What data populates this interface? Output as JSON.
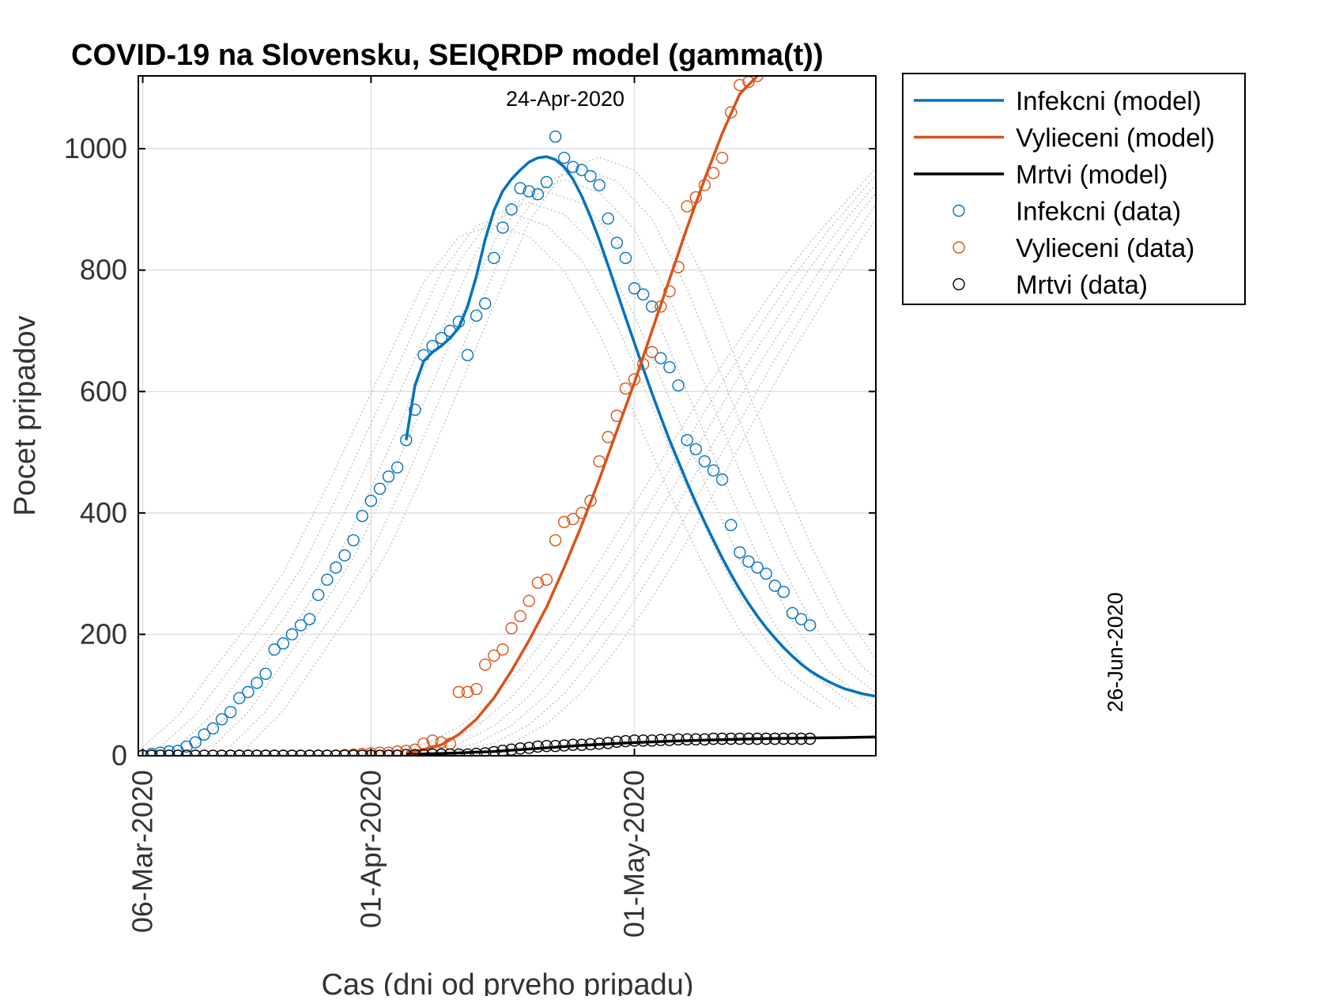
{
  "chart_data": {
    "type": "line",
    "title": "COVID-19 na Slovensku, SEIQRDP model (gamma(t))",
    "xlabel": "Cas (dni od prveho pripadu)",
    "ylabel": "Pocet pripadov",
    "xlim": [
      -0.5,
      83.5
    ],
    "ylim": [
      0,
      1120
    ],
    "grid": true,
    "legend_position": "outside-top-right",
    "x_ticks": [
      {
        "day": 0,
        "label": "06-Mar-2020"
      },
      {
        "day": 26,
        "label": "01-Apr-2020"
      },
      {
        "day": 56,
        "label": "01-May-2020"
      }
    ],
    "y_ticks": [
      0,
      200,
      400,
      600,
      800,
      1000
    ],
    "annotations": {
      "top_date": "24-Apr-2020",
      "side_date": "26-Jun-2020"
    },
    "colors": {
      "infected": "#0072BD",
      "recovered": "#D95319",
      "dead": "#000000",
      "ensemble": "#c8c8c8",
      "grid": "#e0e0e0"
    },
    "legend": [
      {
        "label": "Infekcni (model)",
        "kind": "line",
        "color": "#0072BD"
      },
      {
        "label": "Vylieceni (model)",
        "kind": "line",
        "color": "#D95319"
      },
      {
        "label": "Mrtvi (model)",
        "kind": "line",
        "color": "#000000"
      },
      {
        "label": "Infekcni (data)",
        "kind": "marker",
        "color": "#0072BD"
      },
      {
        "label": "Vylieceni (data)",
        "kind": "marker",
        "color": "#D95319"
      },
      {
        "label": "Mrtvi (data)",
        "kind": "marker",
        "color": "#000000"
      }
    ],
    "series": [
      {
        "name": "Infekcni (model)",
        "style": "line",
        "x": [
          30,
          31,
          32,
          33,
          34,
          35,
          36,
          37,
          38,
          39,
          40,
          41,
          42,
          43,
          44,
          45,
          46,
          47,
          48,
          49,
          50,
          51,
          52,
          53,
          54,
          55,
          56,
          57,
          58,
          59,
          60,
          61,
          62,
          63,
          64,
          65,
          66,
          67,
          68,
          69,
          70,
          71,
          72,
          73,
          74,
          75,
          76,
          77,
          78,
          79,
          80,
          81,
          82,
          83.5
        ],
        "y": [
          520,
          610,
          650,
          665,
          675,
          688,
          705,
          740,
          790,
          850,
          898,
          930,
          950,
          965,
          978,
          985,
          987,
          982,
          970,
          950,
          922,
          888,
          850,
          808,
          765,
          722,
          680,
          638,
          597,
          558,
          520,
          485,
          450,
          417,
          385,
          355,
          326,
          299,
          274,
          251,
          230,
          211,
          194,
          178,
          164,
          151,
          140,
          131,
          123,
          116,
          110,
          106,
          102,
          98
        ]
      },
      {
        "name": "Vylieceni (model)",
        "style": "line",
        "x": [
          30,
          32,
          34,
          36,
          38,
          40,
          42,
          44,
          46,
          48,
          50,
          52,
          54,
          56,
          58,
          60,
          62,
          64,
          66,
          68,
          70
        ],
        "y": [
          5,
          10,
          18,
          35,
          60,
          95,
          140,
          190,
          245,
          310,
          380,
          455,
          535,
          615,
          700,
          785,
          870,
          950,
          1025,
          1090,
          1120
        ]
      },
      {
        "name": "Mrtvi (model)",
        "style": "line",
        "x": [
          30,
          35,
          40,
          45,
          50,
          55,
          60,
          65,
          70,
          75,
          80,
          83.5
        ],
        "y": [
          2,
          4,
          7,
          12,
          17,
          21,
          24,
          26,
          28,
          29,
          30,
          31
        ]
      },
      {
        "name": "Infekcni (data)",
        "style": "marker",
        "x": [
          0,
          1,
          2,
          3,
          4,
          5,
          6,
          7,
          8,
          9,
          10,
          11,
          12,
          13,
          14,
          15,
          16,
          17,
          18,
          19,
          20,
          21,
          22,
          23,
          24,
          25,
          26,
          27,
          28,
          29,
          30,
          31,
          32,
          33,
          34,
          35,
          36,
          37,
          38,
          39,
          40,
          41,
          42,
          43,
          44,
          45,
          46,
          47,
          48,
          49,
          50,
          51,
          52,
          53,
          54,
          55,
          56,
          57,
          58,
          59,
          60,
          61,
          62,
          63,
          64,
          65,
          66,
          67,
          68,
          69,
          70,
          71,
          72,
          73,
          74,
          75,
          76
        ],
        "y": [
          0,
          3,
          5,
          7,
          8,
          15,
          22,
          35,
          45,
          60,
          72,
          95,
          105,
          120,
          135,
          175,
          185,
          200,
          215,
          225,
          265,
          290,
          310,
          330,
          355,
          395,
          420,
          440,
          460,
          475,
          520,
          570,
          660,
          675,
          688,
          700,
          715,
          660,
          725,
          745,
          820,
          870,
          900,
          935,
          930,
          925,
          945,
          1020,
          985,
          970,
          965,
          955,
          940,
          885,
          845,
          820,
          770,
          760,
          740,
          655,
          640,
          610,
          520,
          505,
          485,
          470,
          455,
          380,
          335,
          320,
          310,
          300,
          280,
          270,
          235,
          225,
          215
        ]
      },
      {
        "name": "Vylieceni (data)",
        "style": "marker",
        "x": [
          10,
          11,
          12,
          13,
          14,
          15,
          16,
          17,
          18,
          19,
          20,
          21,
          22,
          23,
          24,
          25,
          26,
          27,
          28,
          29,
          30,
          31,
          32,
          33,
          34,
          35,
          36,
          37,
          38,
          39,
          40,
          41,
          42,
          43,
          44,
          45,
          46,
          47,
          48,
          49,
          50,
          51,
          52,
          53,
          54,
          55,
          56,
          57,
          58,
          59,
          60,
          61,
          62,
          63,
          64,
          65,
          66,
          67,
          68,
          69,
          70
        ],
        "y": [
          0,
          0,
          0,
          0,
          0,
          0,
          0,
          0,
          0,
          0,
          0,
          0,
          0,
          1,
          2,
          3,
          4,
          5,
          5,
          7,
          8,
          10,
          20,
          25,
          22,
          20,
          105,
          105,
          110,
          150,
          165,
          175,
          210,
          230,
          255,
          285,
          290,
          355,
          385,
          390,
          400,
          420,
          485,
          525,
          560,
          605,
          620,
          645,
          665,
          740,
          765,
          805,
          905,
          920,
          940,
          960,
          985,
          1060,
          1105,
          1110,
          1120
        ]
      },
      {
        "name": "Mrtvi (data)",
        "style": "marker",
        "x": [
          0,
          1,
          2,
          3,
          4,
          5,
          6,
          7,
          8,
          9,
          10,
          11,
          12,
          13,
          14,
          15,
          16,
          17,
          18,
          19,
          20,
          21,
          22,
          23,
          24,
          25,
          26,
          27,
          28,
          29,
          30,
          31,
          32,
          33,
          34,
          35,
          36,
          37,
          38,
          39,
          40,
          41,
          42,
          43,
          44,
          45,
          46,
          47,
          48,
          49,
          50,
          51,
          52,
          53,
          54,
          55,
          56,
          57,
          58,
          59,
          60,
          61,
          62,
          63,
          64,
          65,
          66,
          67,
          68,
          69,
          70,
          71,
          72,
          73,
          74,
          75,
          76
        ],
        "y": [
          0,
          0,
          0,
          0,
          0,
          0,
          0,
          0,
          0,
          0,
          0,
          0,
          0,
          0,
          0,
          0,
          0,
          0,
          0,
          0,
          0,
          0,
          0,
          0,
          0,
          0,
          0,
          0,
          0,
          0,
          1,
          1,
          1,
          2,
          2,
          2,
          2,
          2,
          3,
          4,
          6,
          8,
          10,
          12,
          13,
          15,
          16,
          16,
          17,
          18,
          18,
          19,
          20,
          21,
          23,
          24,
          25,
          25,
          25,
          26,
          26,
          27,
          27,
          27,
          27,
          28,
          28,
          28,
          28,
          28,
          28,
          28,
          28,
          28,
          28,
          28,
          28
        ]
      }
    ],
    "ensemble": {
      "infected": {
        "x": [
          6,
          10,
          14,
          18,
          22,
          26,
          30,
          34,
          38,
          42,
          46,
          50,
          54,
          58,
          62,
          66,
          70,
          74,
          78,
          83.5
        ],
        "offsets": [
          -6,
          -4,
          -2,
          0,
          2,
          4,
          6
        ],
        "base": [
          15,
          70,
          150,
          230,
          320,
          440,
          570,
          700,
          830,
          910,
          930,
          910,
          850,
          740,
          600,
          460,
          330,
          220,
          140,
          80
        ]
      },
      "recovered": {
        "x": [
          24,
          28,
          32,
          36,
          40,
          44,
          48,
          52,
          56,
          60,
          64,
          68,
          72,
          76,
          80,
          83.5
        ],
        "offsets": [
          0,
          2,
          4,
          6,
          8,
          10
        ],
        "base": [
          2,
          8,
          20,
          50,
          100,
          170,
          250,
          340,
          440,
          540,
          640,
          730,
          820,
          900,
          970,
          1030
        ]
      }
    }
  }
}
